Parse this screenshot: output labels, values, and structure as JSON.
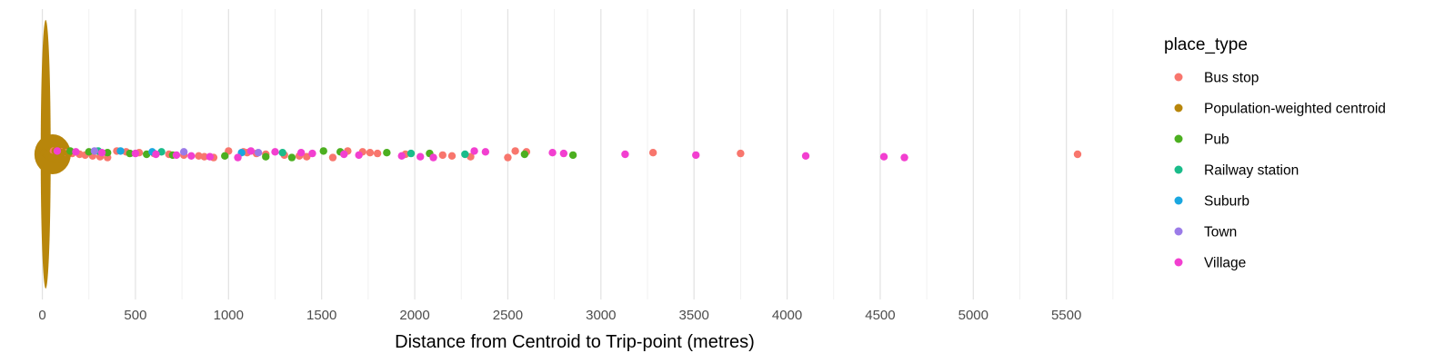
{
  "chart_data": {
    "type": "scatter",
    "title": "",
    "xlabel": "Distance from Centroid to Trip-point (metres)",
    "ylabel": "",
    "xlim": [
      -120,
      5780
    ],
    "x_ticks": [
      0,
      500,
      1000,
      1500,
      2000,
      2500,
      3000,
      3500,
      4000,
      4500,
      5000,
      5500
    ],
    "x_tick_labels": [
      "0",
      "500",
      "1000",
      "1500",
      "2000",
      "2500",
      "3000",
      "3500",
      "4000",
      "4500",
      "5000",
      "5500"
    ],
    "grid": true,
    "legend": {
      "title": "place_type",
      "position": "right"
    },
    "series": [
      {
        "name": "Bus stop",
        "color": "#F8766D",
        "values": [
          60,
          100,
          130,
          160,
          200,
          230,
          270,
          310,
          350,
          400,
          450,
          520,
          600,
          680,
          760,
          840,
          870,
          920,
          1000,
          1080,
          1100,
          1150,
          1200,
          1300,
          1380,
          1420,
          1560,
          1640,
          1720,
          1760,
          1800,
          1950,
          2150,
          2200,
          2300,
          2500,
          2540,
          2600,
          3280,
          3750,
          5560
        ]
      },
      {
        "name": "Population-weighted centroid",
        "color": "#B8860B",
        "values": [
          0,
          5,
          10,
          15,
          20,
          25,
          30,
          40,
          50,
          70,
          90,
          110,
          140
        ]
      },
      {
        "name": "Pub",
        "color": "#4CAF20",
        "values": [
          150,
          250,
          350,
          470,
          560,
          700,
          980,
          1200,
          1340,
          1510,
          1600,
          1850,
          2080,
          2590,
          2850
        ]
      },
      {
        "name": "Railway station",
        "color": "#1ABC8A",
        "values": [
          300,
          640,
          1290,
          1980,
          2270
        ]
      },
      {
        "name": "Suburb",
        "color": "#1AA7E0",
        "values": [
          420,
          590,
          1070
        ]
      },
      {
        "name": "Town",
        "color": "#9B7BE8",
        "values": [
          280,
          760,
          1160
        ]
      },
      {
        "name": "Village",
        "color": "#F23FD0",
        "values": [
          80,
          180,
          320,
          500,
          610,
          720,
          800,
          900,
          1050,
          1120,
          1250,
          1390,
          1450,
          1620,
          1700,
          1930,
          2030,
          2100,
          2320,
          2380,
          2740,
          2800,
          3130,
          3510,
          4100,
          4520,
          4630
        ]
      }
    ]
  }
}
